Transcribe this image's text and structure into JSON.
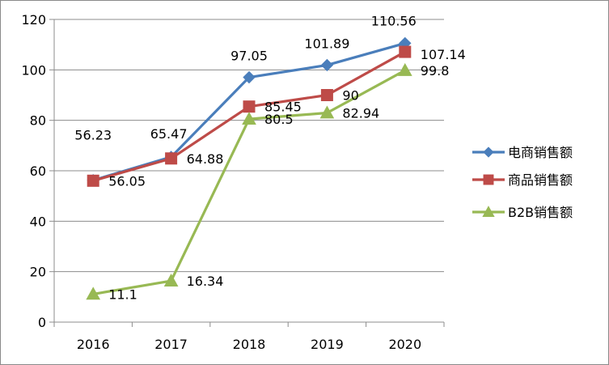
{
  "chart_data": {
    "type": "line",
    "title": "",
    "xlabel": "",
    "ylabel": "",
    "categories": [
      "2016",
      "2017",
      "2018",
      "2019",
      "2020"
    ],
    "ylim": [
      0,
      120
    ],
    "yticks": [
      0,
      20,
      40,
      60,
      80,
      100,
      120
    ],
    "grid": true,
    "legend_position": "right",
    "series": [
      {
        "name": "电商销售额",
        "values": [
          56.23,
          65.47,
          97.05,
          101.89,
          110.56
        ],
        "labels": [
          "56.23",
          "65.47",
          "97.05",
          "101.89",
          "110.56"
        ],
        "color": "#4a7ebb",
        "marker": "diamond"
      },
      {
        "name": "商品销售额",
        "values": [
          56.05,
          64.88,
          85.45,
          90,
          107.14
        ],
        "labels": [
          "56.05",
          "64.88",
          "85.45",
          "90",
          "107.14"
        ],
        "color": "#be4b48",
        "marker": "square"
      },
      {
        "name": "B2B销售额",
        "values": [
          11.1,
          16.34,
          80.5,
          82.94,
          99.8
        ],
        "labels": [
          "11.1",
          "16.34",
          "80.5",
          "82.94",
          "99.8"
        ],
        "color": "#98b954",
        "marker": "triangle"
      }
    ]
  }
}
